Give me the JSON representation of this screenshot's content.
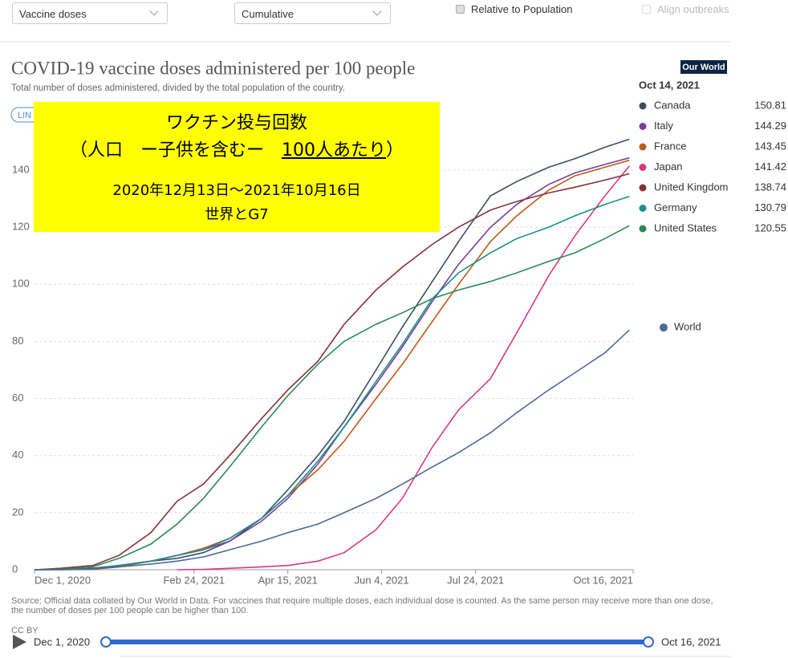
{
  "controls": {
    "metric": "Vaccine doses",
    "interval": "Cumulative",
    "relative": "Relative to Population",
    "align": "Align outbreaks",
    "scale_button": "LIN"
  },
  "annotation": {
    "line1": "ワクチン投与回数",
    "line2_prefix": "（人口　ー子供を含むー　",
    "line2_underlined": "100人あたり",
    "line2_suffix": "）",
    "line3": "2020年12月13日～2021年10月16日",
    "line4": "世界とG7"
  },
  "chart_data": {
    "type": "line",
    "title": "COVID-19 vaccine doses administered per 100 people",
    "subtitle": "Total number of doses administered, divided by the total population of the country.",
    "logo": "Our World",
    "source": "Source: Official data collated by Our World in Data. For vaccines that require multiple doses, each individual dose is counted. As the same person may receive more than one dose, the number of doses per 100 people can be higher than 100.",
    "license": "CC BY",
    "legend_date": "Oct 14, 2021",
    "x": [
      "2020-12-01",
      "2020-12-15",
      "2021-01-01",
      "2021-01-15",
      "2021-02-01",
      "2021-02-15",
      "2021-03-01",
      "2021-03-15",
      "2021-04-01",
      "2021-04-15",
      "2021-05-01",
      "2021-05-15",
      "2021-06-01",
      "2021-06-15",
      "2021-07-01",
      "2021-07-15",
      "2021-08-01",
      "2021-08-15",
      "2021-09-01",
      "2021-09-15",
      "2021-10-01",
      "2021-10-14"
    ],
    "xlim": [
      "2020-12-01",
      "2021-10-16"
    ],
    "xticks": [
      {
        "value": "2020-12-01",
        "label": "Dec 1, 2020"
      },
      {
        "value": "2021-02-24",
        "label": "Feb 24, 2021"
      },
      {
        "value": "2021-04-15",
        "label": "Apr 15, 2021"
      },
      {
        "value": "2021-06-04",
        "label": "Jun 4, 2021"
      },
      {
        "value": "2021-07-24",
        "label": "Jul 24, 2021"
      },
      {
        "value": "2021-10-16",
        "label": "Oct 16, 2021"
      }
    ],
    "ylim": [
      0,
      150
    ],
    "yticks": [
      0,
      20,
      40,
      60,
      80,
      100,
      120,
      140
    ],
    "grid": true,
    "series": [
      {
        "name": "Canada",
        "color": "#3c4e66",
        "values": [
          0,
          0.1,
          0.5,
          1.5,
          3,
          4,
          6,
          10,
          18,
          28,
          40,
          52,
          70,
          85,
          101,
          115,
          131,
          136,
          141,
          144,
          148,
          150.81
        ]
      },
      {
        "name": "Italy",
        "color": "#7a3e9d",
        "values": [
          0,
          0.1,
          0.3,
          1.5,
          3,
          5,
          7,
          10,
          17,
          25,
          37,
          50,
          65,
          78,
          94,
          107,
          120,
          128,
          135,
          139,
          142,
          144.29
        ]
      },
      {
        "name": "France",
        "color": "#c05917",
        "values": [
          0,
          0,
          0.1,
          1,
          3,
          5,
          7.5,
          11,
          18,
          26,
          35,
          45,
          60,
          72,
          87,
          100,
          115,
          124,
          133,
          138,
          141,
          143.45
        ]
      },
      {
        "name": "Japan",
        "color": "#d83a7c",
        "values": [
          null,
          null,
          null,
          null,
          null,
          0,
          0.1,
          0.5,
          1,
          1.5,
          3,
          6,
          14,
          25,
          43,
          56,
          67,
          83,
          103,
          117,
          131,
          141.42
        ]
      },
      {
        "name": "United Kingdom",
        "color": "#883039",
        "values": [
          0,
          0.5,
          1.5,
          5,
          13,
          24,
          30,
          40,
          53,
          63,
          73,
          86,
          98,
          106,
          114,
          120,
          126,
          129,
          132,
          134,
          136.5,
          138.74
        ]
      },
      {
        "name": "Germany",
        "color": "#18918a",
        "values": [
          0,
          0.1,
          0.2,
          1.5,
          3,
          5,
          7,
          11,
          18,
          26,
          38,
          50,
          66,
          79,
          95,
          104,
          111,
          116,
          120,
          124,
          128,
          130.79
        ]
      },
      {
        "name": "United States",
        "color": "#2c8a55",
        "values": [
          0,
          0.2,
          1,
          4,
          9,
          16,
          25,
          36,
          50,
          61,
          72,
          80,
          86,
          90,
          95,
          98,
          101,
          104,
          108,
          111,
          116,
          120.55
        ]
      },
      {
        "name": "World",
        "color": "#4c6a9c",
        "label_position": "end",
        "values": [
          0,
          0,
          0.3,
          1,
          2,
          3,
          4.5,
          7,
          10,
          13,
          16,
          20,
          25,
          30,
          36,
          41,
          48,
          55,
          63,
          69,
          76,
          84
        ]
      }
    ]
  },
  "timeline": {
    "start": "Dec 1, 2020",
    "end": "Oct 16, 2021"
  }
}
